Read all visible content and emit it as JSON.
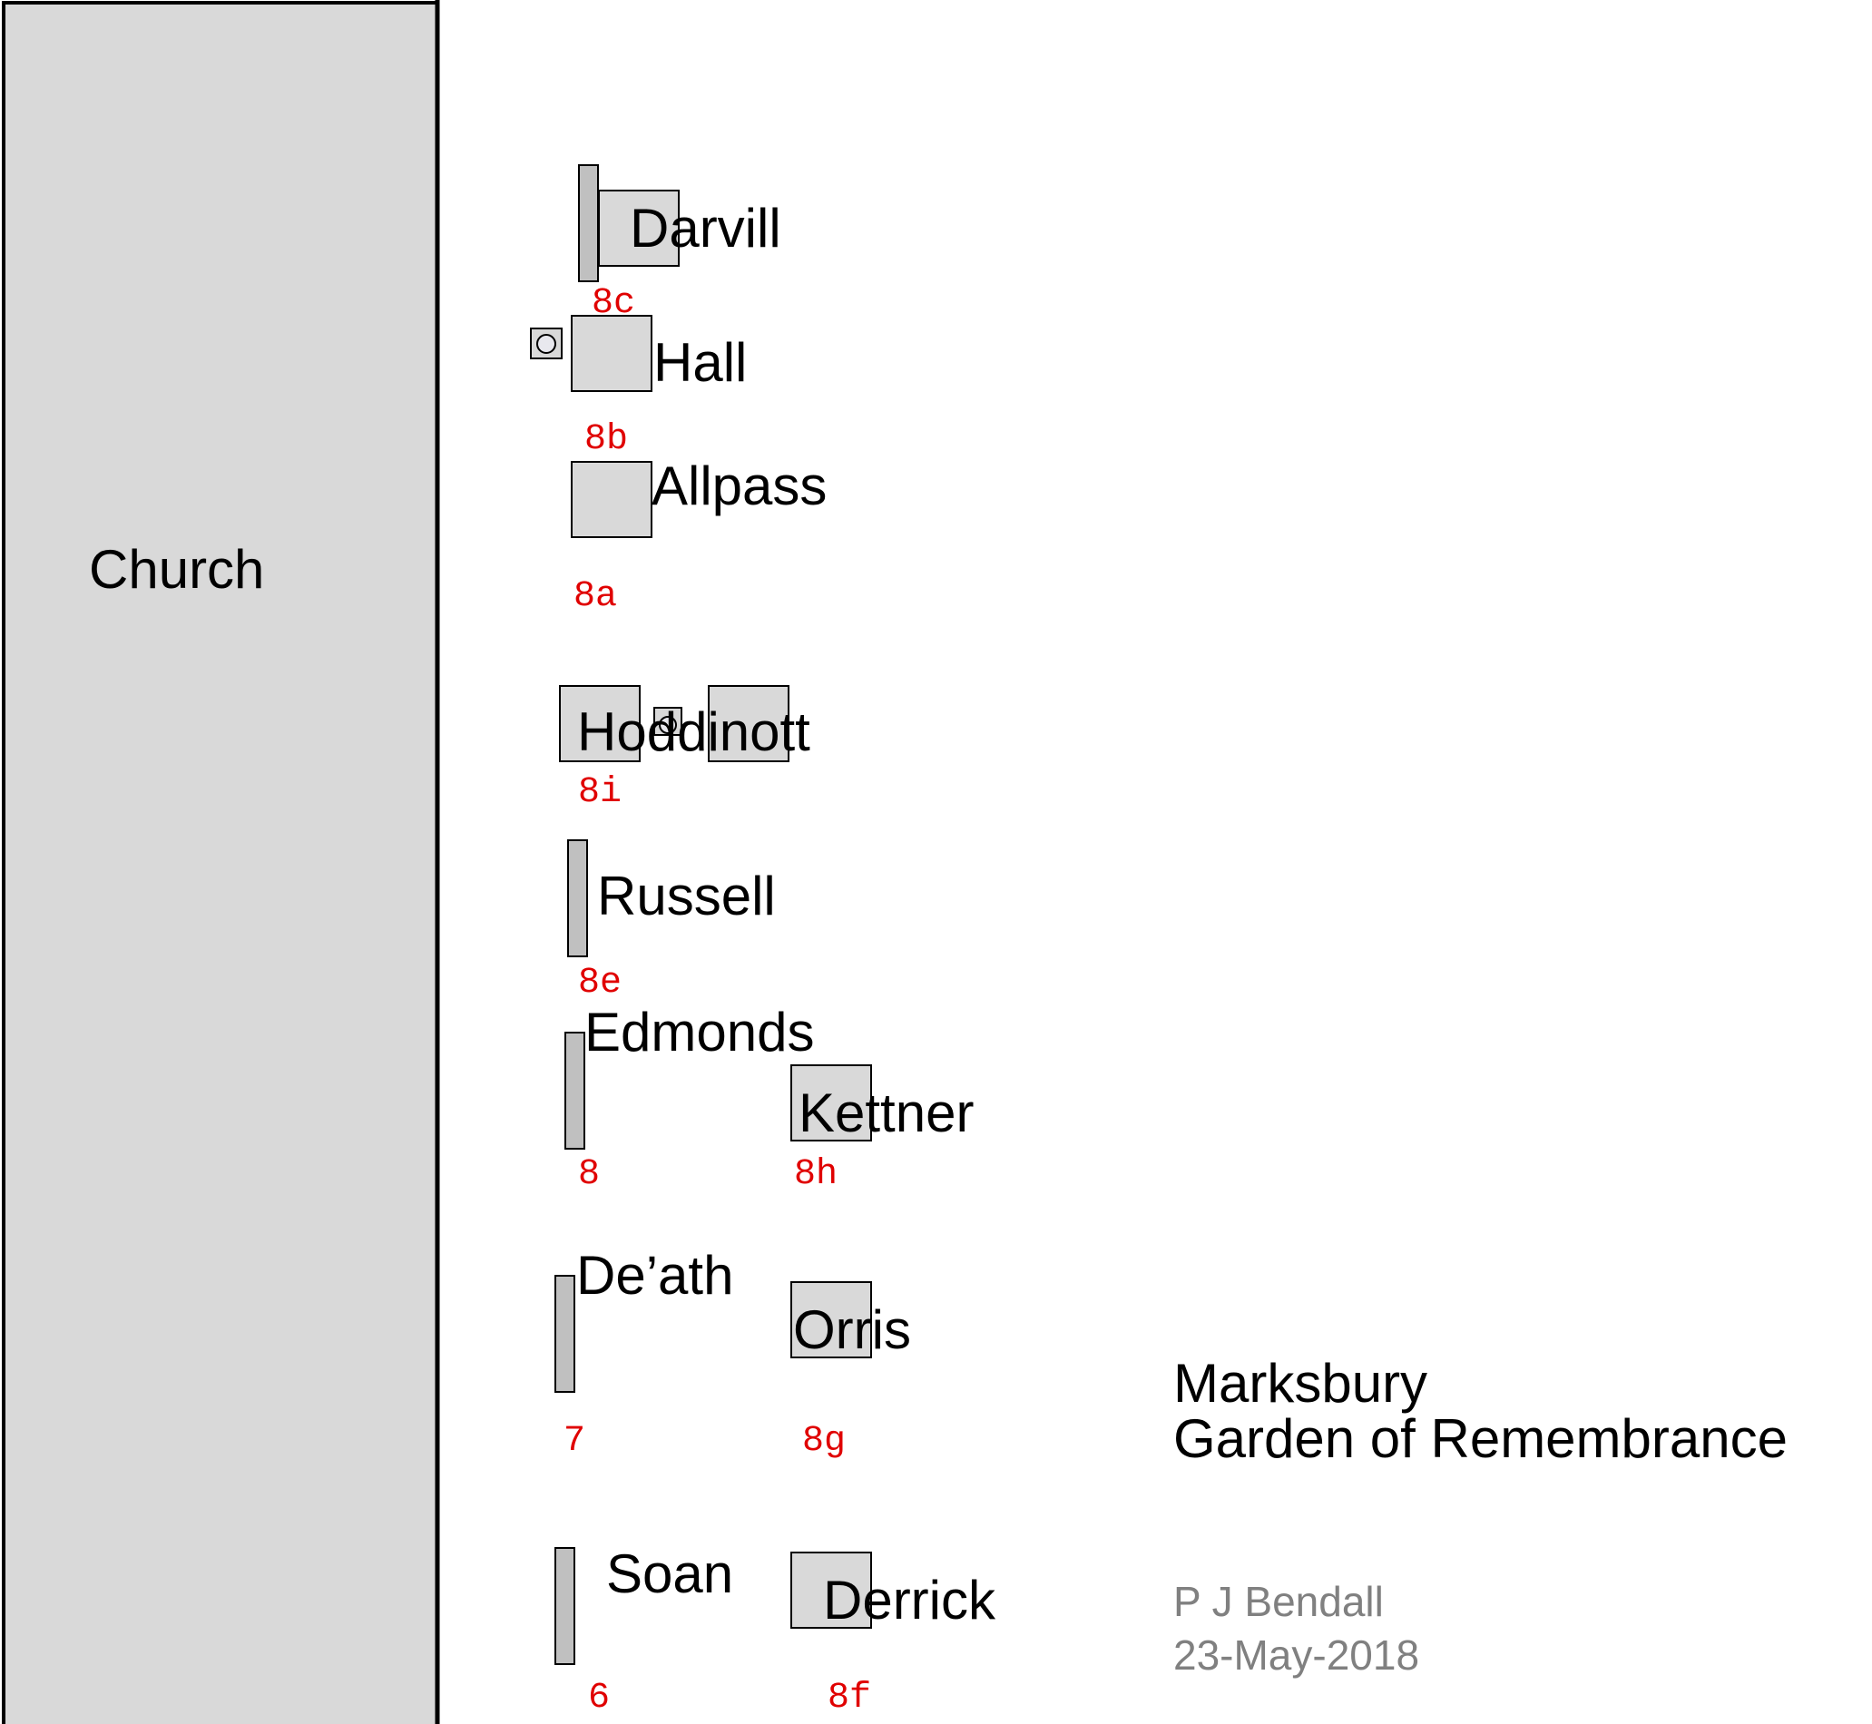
{
  "church": {
    "label": "Church",
    "fill": "#d9d9d9"
  },
  "plots": [
    {
      "key": "8c",
      "name": "Darvill",
      "id": "8c"
    },
    {
      "key": "8b",
      "name": "Hall",
      "id": "8b"
    },
    {
      "key": "8a",
      "name": "Allpass",
      "id": "8a"
    },
    {
      "key": "8i",
      "name": "Hoddinott",
      "id": "8i"
    },
    {
      "key": "8e",
      "name": "Russell",
      "id": "8e"
    },
    {
      "key": "8",
      "name": "Edmonds",
      "id": "8"
    },
    {
      "key": "8h",
      "name": "Kettner",
      "id": "8h"
    },
    {
      "key": "7",
      "name": "De’ath",
      "id": "7"
    },
    {
      "key": "8g",
      "name": "Orris",
      "id": "8g"
    },
    {
      "key": "6",
      "name": "Soan",
      "id": "6"
    },
    {
      "key": "8f",
      "name": "Derrick",
      "id": "8f"
    }
  ],
  "title": {
    "line1": "Marksbury",
    "line2": "Garden of Remembrance"
  },
  "credit": {
    "author": "P J Bendall",
    "date": "23-May-2018"
  },
  "colors": {
    "plot_id": "#e00000",
    "stone": "#d9d9d9",
    "credit": "#808080"
  }
}
